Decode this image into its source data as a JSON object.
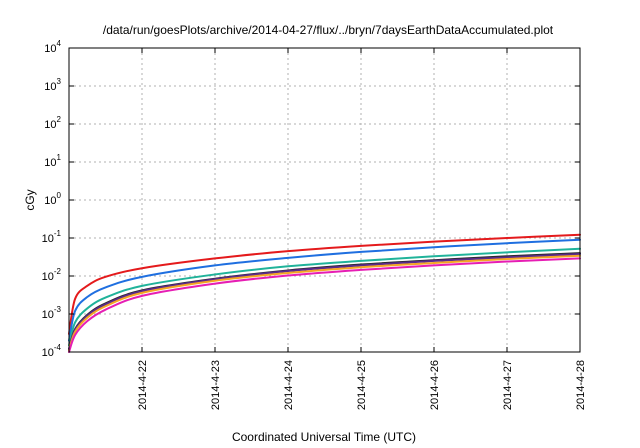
{
  "chart_data": {
    "type": "line",
    "title": "/data/run/goesPlots/archive/2014-04-27/flux/../bryn/7daysEarthDataAccumulated.plot",
    "xlabel": "Coordinated Universal Time (UTC)",
    "ylabel": "cGy",
    "y_scale": "log",
    "ylim": [
      0.0001,
      10000
    ],
    "xlim": [
      "2014-4-21",
      "2014-4-28"
    ],
    "x_tick_labels": [
      "2014-4-22",
      "2014-4-23",
      "2014-4-24",
      "2014-4-25",
      "2014-4-26",
      "2014-4-27",
      "2014-4-28"
    ],
    "y_ticks": [
      {
        "value": 0.0001,
        "base": "10",
        "exp": "-4"
      },
      {
        "value": 0.001,
        "base": "10",
        "exp": "-3"
      },
      {
        "value": 0.01,
        "base": "10",
        "exp": "-2"
      },
      {
        "value": 0.1,
        "base": "10",
        "exp": "-1"
      },
      {
        "value": 1,
        "base": "10",
        "exp": "0"
      },
      {
        "value": 10,
        "base": "10",
        "exp": "1"
      },
      {
        "value": 100,
        "base": "10",
        "exp": "2"
      },
      {
        "value": 1000,
        "base": "10",
        "exp": "3"
      },
      {
        "value": 10000,
        "base": "10",
        "exp": "4"
      }
    ],
    "grid": true,
    "x": [
      "2014-4-21 00:00",
      "2014-4-21 02:00",
      "2014-4-21 06:00",
      "2014-4-21 12:00",
      "2014-4-22 00:00",
      "2014-4-23 00:00",
      "2014-4-24 00:00",
      "2014-4-25 00:00",
      "2014-4-26 00:00",
      "2014-4-27 00:00",
      "2014-4-28 00:00"
    ],
    "series": [
      {
        "color": "#e41a1c",
        "values": [
          0.0003,
          0.0025,
          0.0055,
          0.0095,
          0.016,
          0.029,
          0.045,
          0.062,
          0.08,
          0.1,
          0.122
        ]
      },
      {
        "color": "#1f6fe0",
        "values": [
          0.0002,
          0.0012,
          0.0028,
          0.005,
          0.0095,
          0.019,
          0.03,
          0.043,
          0.057,
          0.073,
          0.09
        ]
      },
      {
        "color": "#20b39a",
        "values": [
          0.00015,
          0.0006,
          0.0014,
          0.0027,
          0.0055,
          0.011,
          0.018,
          0.025,
          0.033,
          0.042,
          0.052
        ]
      },
      {
        "color": "#2a2a2a",
        "values": [
          0.00012,
          0.0004,
          0.00095,
          0.0019,
          0.0042,
          0.0085,
          0.014,
          0.02,
          0.026,
          0.033,
          0.04
        ]
      },
      {
        "color": "#5a2a8a",
        "values": [
          0.00012,
          0.00038,
          0.0009,
          0.0018,
          0.004,
          0.0082,
          0.0135,
          0.019,
          0.025,
          0.031,
          0.038
        ]
      },
      {
        "color": "#f5a623",
        "values": [
          0.00011,
          0.00034,
          0.0008,
          0.0016,
          0.0036,
          0.0075,
          0.012,
          0.017,
          0.022,
          0.028,
          0.034
        ]
      },
      {
        "color": "#e61eb4",
        "values": [
          0.0001,
          0.00028,
          0.00065,
          0.0013,
          0.003,
          0.0063,
          0.0103,
          0.0145,
          0.019,
          0.024,
          0.029
        ]
      }
    ]
  }
}
